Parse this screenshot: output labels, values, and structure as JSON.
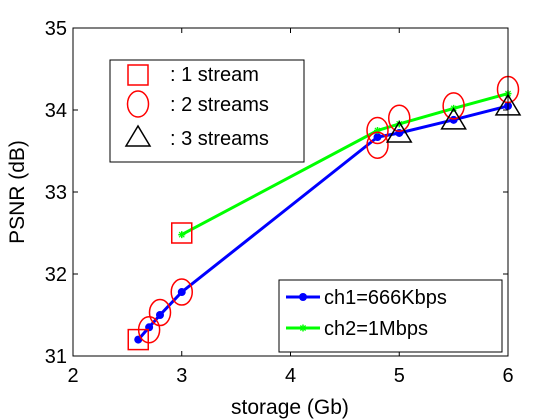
{
  "chart_data": {
    "type": "line",
    "xlabel": "storage (Gb)",
    "ylabel": "PSNR (dB)",
    "xlim": [
      2,
      6
    ],
    "ylim": [
      31,
      35
    ],
    "xticks": [
      "2",
      "3",
      "4",
      "5",
      "6"
    ],
    "yticks": [
      "31",
      "32",
      "33",
      "34",
      "35"
    ],
    "grid": false,
    "series": [
      {
        "name": "ch1=666Kbps",
        "color": "#0000ff",
        "marker": "dot",
        "points": [
          [
            2.6,
            31.2
          ],
          [
            2.7,
            31.35
          ],
          [
            2.8,
            31.5
          ],
          [
            3.0,
            31.78
          ],
          [
            4.8,
            33.67
          ],
          [
            5.0,
            33.72
          ],
          [
            5.5,
            33.88
          ],
          [
            6.0,
            34.05
          ]
        ]
      },
      {
        "name": "ch2=1Mbps",
        "color": "#00ff00",
        "marker": "star",
        "points": [
          [
            3.0,
            32.48
          ],
          [
            4.8,
            33.75
          ],
          [
            5.0,
            33.83
          ],
          [
            5.5,
            34.02
          ],
          [
            6.0,
            34.2
          ]
        ]
      }
    ],
    "stream_markers": [
      {
        "shape": "square",
        "points": [
          [
            2.6,
            31.2
          ],
          [
            3.0,
            32.5
          ]
        ]
      },
      {
        "shape": "circle",
        "points": [
          [
            2.7,
            31.32
          ],
          [
            2.8,
            31.53
          ],
          [
            3.0,
            31.78
          ],
          [
            4.8,
            33.75
          ],
          [
            4.8,
            33.57
          ],
          [
            5.0,
            33.9
          ],
          [
            5.5,
            34.05
          ],
          [
            6.0,
            34.25
          ]
        ]
      },
      {
        "shape": "triangle",
        "points": [
          [
            5.0,
            33.72
          ],
          [
            5.5,
            33.88
          ],
          [
            6.0,
            34.05
          ]
        ]
      }
    ],
    "legend_markers": {
      "placement": "top-left",
      "items": [
        {
          "shape": "square",
          "label": ": 1 stream"
        },
        {
          "shape": "circle",
          "label": ": 2 streams"
        },
        {
          "shape": "triangle",
          "label": ": 3 streams"
        }
      ]
    },
    "legend_series": {
      "placement": "bottom-right",
      "items": [
        {
          "label": "ch1=666Kbps",
          "color": "#0000ff"
        },
        {
          "label": "ch2=1Mbps",
          "color": "#00ff00"
        }
      ]
    }
  }
}
